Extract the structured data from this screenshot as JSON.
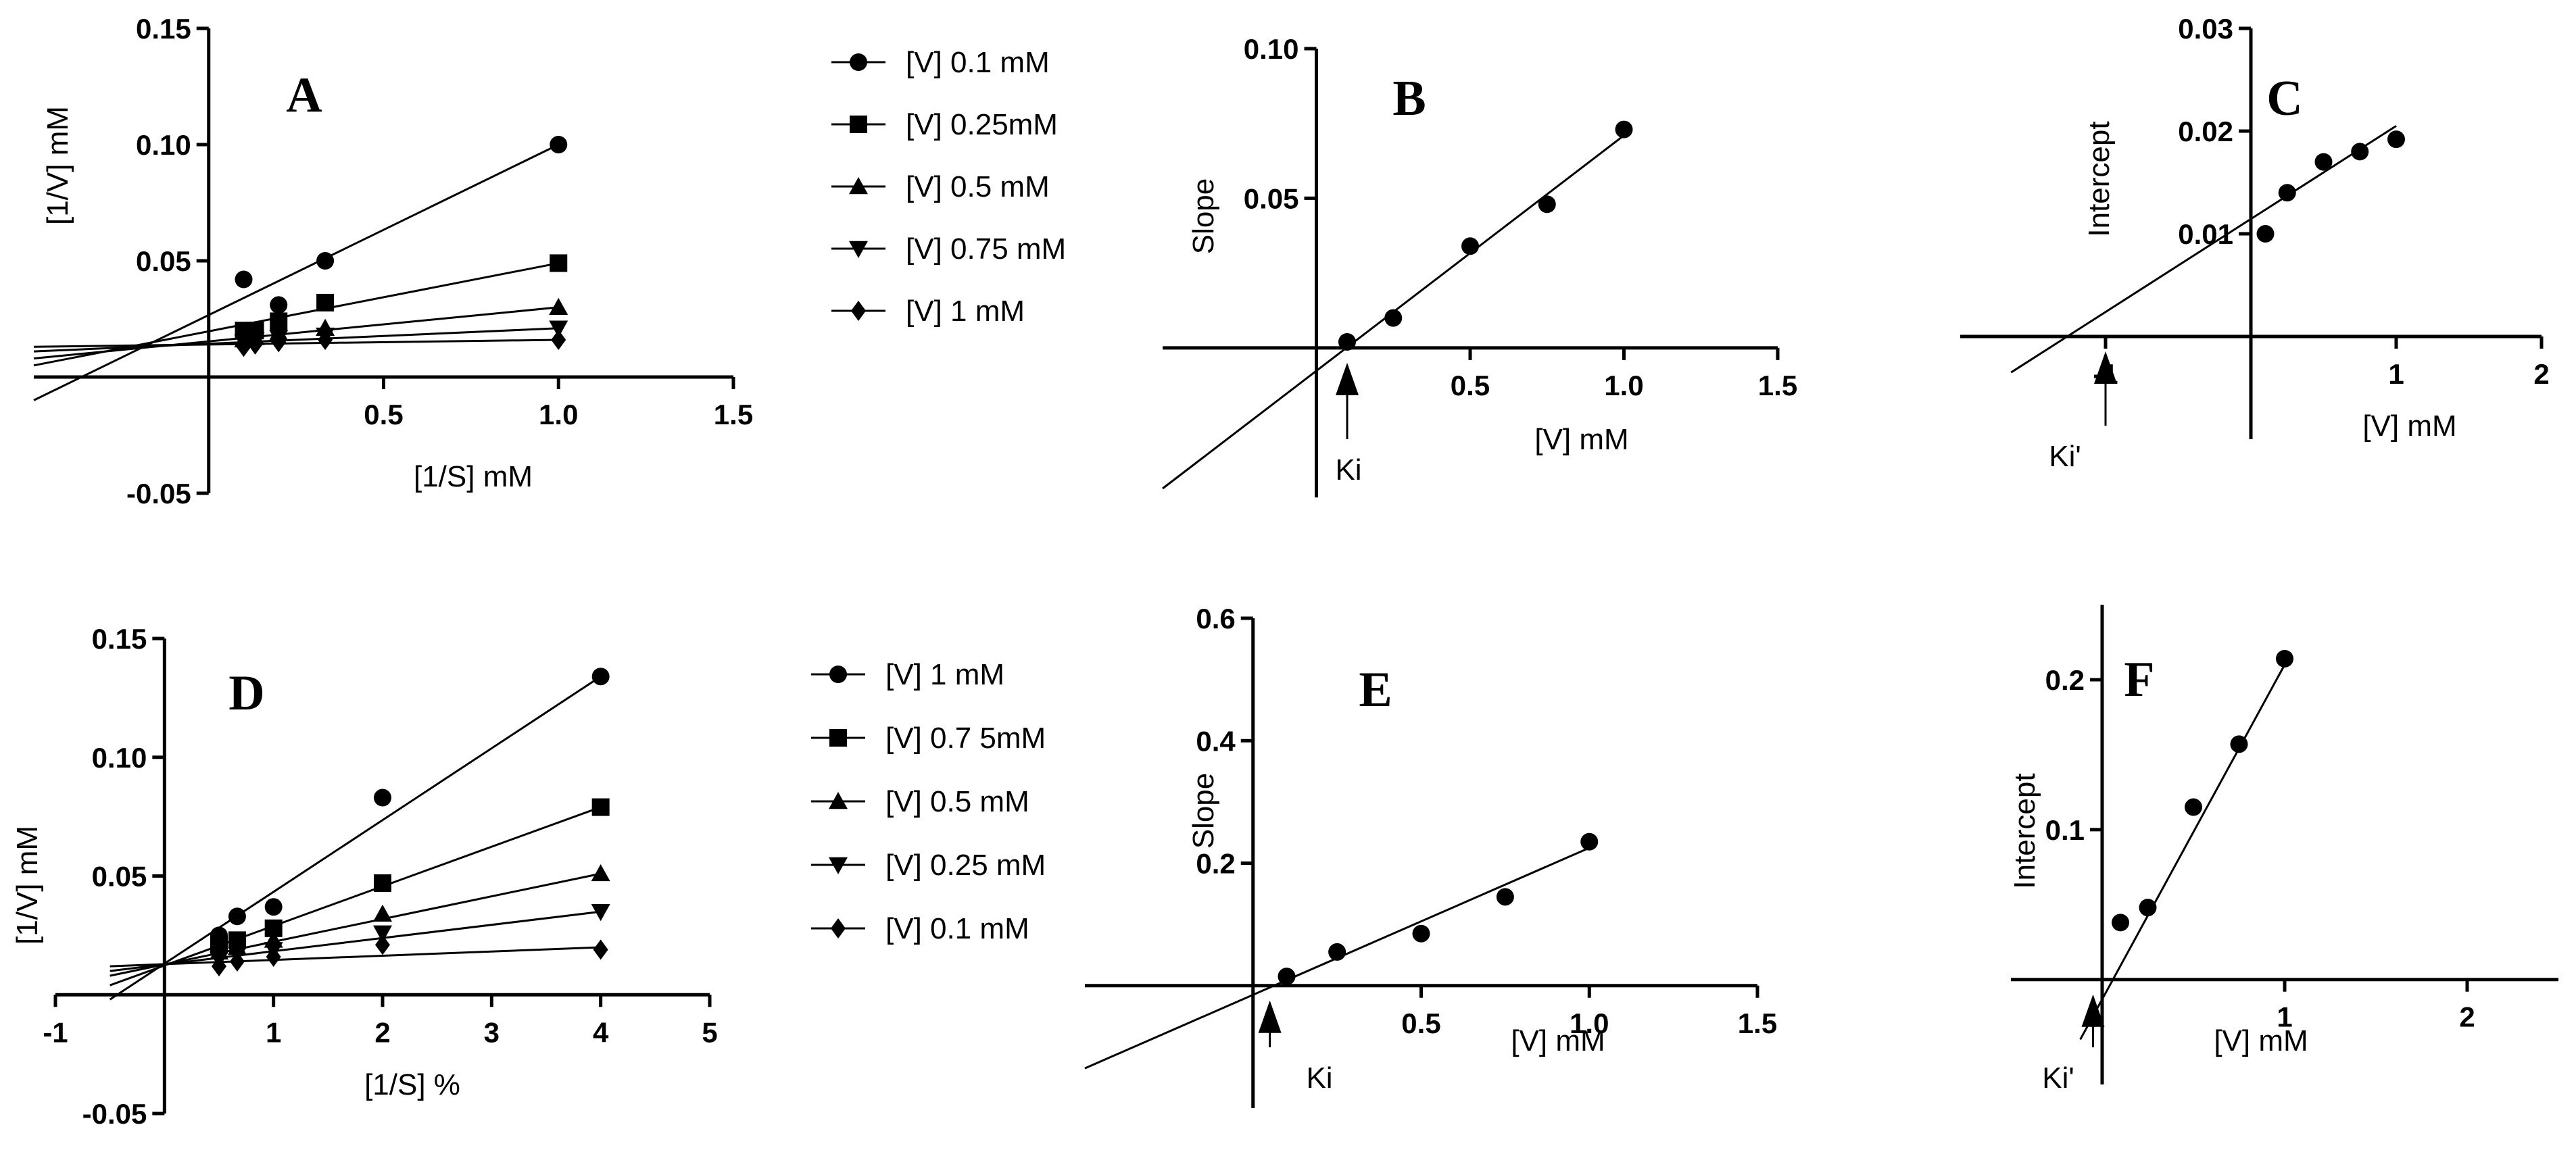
{
  "chart_data": [
    {
      "panel": "A",
      "type": "scatter",
      "xlabel": "[1/S] mM",
      "ylabel": "[1/V] mM",
      "xlim": [
        -0.5,
        1.5
      ],
      "ylim": [
        -0.05,
        0.15
      ],
      "xticks": [
        {
          "v": 0.5,
          "label": "0.5"
        },
        {
          "v": 1.0,
          "label": "1.0"
        },
        {
          "v": 1.5,
          "label": "1.5"
        }
      ],
      "yticks": [
        {
          "v": -0.05,
          "label": "-0.05"
        },
        {
          "v": 0.05,
          "label": "0.05"
        },
        {
          "v": 0.1,
          "label": "0.10"
        },
        {
          "v": 0.15,
          "label": "0.15"
        }
      ],
      "series": [
        {
          "name": "[V] 0.1 mM",
          "marker": "circle",
          "x": [
            0.1,
            0.2,
            0.333,
            1.0
          ],
          "y": [
            0.042,
            0.031,
            0.05,
            0.1
          ],
          "line": [
            [
              -0.5,
              -0.01
            ],
            [
              1.0,
              0.1
            ]
          ]
        },
        {
          "name": "[V] 0.25mM",
          "marker": "square",
          "x": [
            0.1,
            0.133,
            0.2,
            0.333,
            1.0
          ],
          "y": [
            0.02,
            0.02,
            0.024,
            0.032,
            0.049
          ],
          "line": [
            [
              -0.5,
              0.005
            ],
            [
              1.0,
              0.049
            ]
          ]
        },
        {
          "name": "[V] 0.5 mM",
          "marker": "triangle",
          "x": [
            0.1,
            0.133,
            0.2,
            0.333,
            1.0
          ],
          "y": [
            0.016,
            0.017,
            0.019,
            0.021,
            0.03
          ],
          "line": [
            [
              -0.5,
              0.008
            ],
            [
              1.0,
              0.03
            ]
          ]
        },
        {
          "name": "[V] 0.75 mM",
          "marker": "triangle-down",
          "x": [
            0.1,
            0.133,
            0.2,
            0.333,
            1.0
          ],
          "y": [
            0.015,
            0.016,
            0.017,
            0.018,
            0.021
          ],
          "line": [
            [
              -0.5,
              0.011
            ],
            [
              1.0,
              0.021
            ]
          ]
        },
        {
          "name": "[V] 1 mM",
          "marker": "diamond",
          "x": [
            0.1,
            0.133,
            0.2,
            0.333,
            1.0
          ],
          "y": [
            0.013,
            0.014,
            0.015,
            0.016,
            0.016
          ],
          "line": [
            [
              -0.5,
              0.013
            ],
            [
              1.0,
              0.016
            ]
          ]
        }
      ]
    },
    {
      "panel": "B",
      "type": "scatter",
      "xlabel": "[V] mM",
      "ylabel": "Slope",
      "xlim": [
        -0.5,
        1.5
      ],
      "ylim": [
        -0.05,
        0.1
      ],
      "xticks": [
        {
          "v": 0.5,
          "label": "0.5"
        },
        {
          "v": 1.0,
          "label": "1.0"
        },
        {
          "v": 1.5,
          "label": "1.5"
        }
      ],
      "yticks": [
        {
          "v": 0.05,
          "label": "0.05"
        },
        {
          "v": 0.1,
          "label": "0.10"
        }
      ],
      "series": [
        {
          "name": "Slope",
          "marker": "circle",
          "x": [
            0.1,
            0.25,
            0.5,
            0.75,
            1.0
          ],
          "y": [
            0.002,
            0.01,
            0.034,
            0.048,
            0.073
          ],
          "line": [
            [
              -0.5,
              -0.047
            ],
            [
              1.0,
              0.071
            ]
          ]
        }
      ],
      "annotation": {
        "label": "Ki",
        "x": 0.1
      }
    },
    {
      "panel": "C",
      "type": "scatter",
      "xlabel": "[V] mM",
      "ylabel": "Intercept",
      "xlim": [
        -2,
        2
      ],
      "ylim": [
        -0.01,
        0.03
      ],
      "xticks": [
        {
          "v": -1,
          "label": "-1"
        },
        {
          "v": 1,
          "label": "1"
        },
        {
          "v": 2,
          "label": "2"
        }
      ],
      "yticks": [
        {
          "v": 0.01,
          "label": "0.01"
        },
        {
          "v": 0.02,
          "label": "0.02"
        },
        {
          "v": 0.03,
          "label": "0.03"
        }
      ],
      "series": [
        {
          "name": "Intercept",
          "marker": "circle",
          "x": [
            0.1,
            0.25,
            0.5,
            0.75,
            1.0
          ],
          "y": [
            0.01,
            0.014,
            0.017,
            0.018,
            0.0192
          ],
          "line": [
            [
              -1.65,
              -0.0035
            ],
            [
              1.0,
              0.0205
            ]
          ]
        }
      ],
      "annotation": {
        "label": "Ki'",
        "x": -1.0
      }
    },
    {
      "panel": "D",
      "type": "scatter",
      "xlabel": "[1/S] %",
      "ylabel": "[1/V] mM",
      "xlim": [
        -1,
        5
      ],
      "ylim": [
        -0.05,
        0.15
      ],
      "xticks": [
        {
          "v": -1,
          "label": "-1"
        },
        {
          "v": 1,
          "label": "1"
        },
        {
          "v": 2,
          "label": "2"
        },
        {
          "v": 3,
          "label": "3"
        },
        {
          "v": 4,
          "label": "4"
        },
        {
          "v": 5,
          "label": "5"
        }
      ],
      "yticks": [
        {
          "v": -0.05,
          "label": "-0.05"
        },
        {
          "v": 0.05,
          "label": "0.05"
        },
        {
          "v": 0.1,
          "label": "0.10"
        },
        {
          "v": 0.15,
          "label": "0.15"
        }
      ],
      "series": [
        {
          "name": "[V] 1 mM",
          "marker": "circle",
          "x": [
            0.5,
            0.667,
            1.0,
            2.0,
            4.0
          ],
          "y": [
            0.025,
            0.033,
            0.037,
            0.083,
            0.134
          ],
          "line": [
            [
              -0.5,
              -0.002
            ],
            [
              4.0,
              0.134
            ]
          ]
        },
        {
          "name": "[V] 0.7 5mM",
          "marker": "square",
          "x": [
            0.5,
            0.667,
            1.0,
            2.0,
            4.0
          ],
          "y": [
            0.021,
            0.023,
            0.028,
            0.047,
            0.079
          ],
          "line": [
            [
              -0.5,
              0.004
            ],
            [
              4.0,
              0.079
            ]
          ]
        },
        {
          "name": "[V] 0.5 mM",
          "marker": "triangle",
          "x": [
            0.5,
            0.667,
            1.0,
            2.0,
            4.0
          ],
          "y": [
            0.018,
            0.02,
            0.023,
            0.034,
            0.051
          ],
          "line": [
            [
              -0.5,
              0.008
            ],
            [
              4.0,
              0.051
            ]
          ]
        },
        {
          "name": "[V] 0.25 mM",
          "marker": "triangle-down",
          "x": [
            0.5,
            0.667,
            1.0,
            2.0,
            4.0
          ],
          "y": [
            0.015,
            0.017,
            0.019,
            0.026,
            0.035
          ],
          "line": [
            [
              -0.5,
              0.01
            ],
            [
              4.0,
              0.035
            ]
          ]
        },
        {
          "name": "[V] 0.1 mM",
          "marker": "diamond",
          "x": [
            0.5,
            0.667,
            1.0,
            2.0,
            4.0
          ],
          "y": [
            0.012,
            0.014,
            0.016,
            0.021,
            0.019
          ],
          "line": [
            [
              -0.5,
              0.012
            ],
            [
              4.0,
              0.02
            ]
          ]
        }
      ]
    },
    {
      "panel": "E",
      "type": "scatter",
      "xlabel": "[V] mM",
      "ylabel": "Slope",
      "xlim": [
        -0.5,
        1.5
      ],
      "ylim": [
        -0.2,
        0.6
      ],
      "xticks": [
        {
          "v": 0.5,
          "label": "0.5"
        },
        {
          "v": 1.0,
          "label": "1.0"
        },
        {
          "v": 1.5,
          "label": "1.5"
        }
      ],
      "yticks": [
        {
          "v": 0.2,
          "label": "0.2"
        },
        {
          "v": 0.4,
          "label": "0.4"
        },
        {
          "v": 0.6,
          "label": "0.6"
        }
      ],
      "series": [
        {
          "name": "Slope",
          "marker": "circle",
          "x": [
            0.1,
            0.25,
            0.5,
            0.75,
            1.0
          ],
          "y": [
            0.015,
            0.055,
            0.085,
            0.145,
            0.235
          ],
          "line": [
            [
              -0.5,
              -0.135
            ],
            [
              1.0,
              0.225
            ]
          ]
        }
      ],
      "annotation": {
        "label": "Ki",
        "x": 0.05
      }
    },
    {
      "panel": "F",
      "type": "scatter",
      "xlabel": "[V] mM",
      "ylabel": "Intercept",
      "xlim": [
        -0.5,
        2.5
      ],
      "ylim": [
        -0.07,
        0.25
      ],
      "xticks": [
        {
          "v": 1,
          "label": "1"
        },
        {
          "v": 2,
          "label": "2"
        }
      ],
      "yticks": [
        {
          "v": 0.1,
          "label": "0.1"
        },
        {
          "v": 0.2,
          "label": "0.2"
        }
      ],
      "series": [
        {
          "name": "Intercept",
          "marker": "circle",
          "x": [
            0.1,
            0.25,
            0.5,
            0.75,
            1.0
          ],
          "y": [
            0.038,
            0.048,
            0.115,
            0.157,
            0.214
          ],
          "line": [
            [
              -0.12,
              -0.04
            ],
            [
              1.0,
              0.21
            ]
          ]
        }
      ],
      "annotation": {
        "label": "Ki'",
        "x": -0.05
      }
    }
  ]
}
